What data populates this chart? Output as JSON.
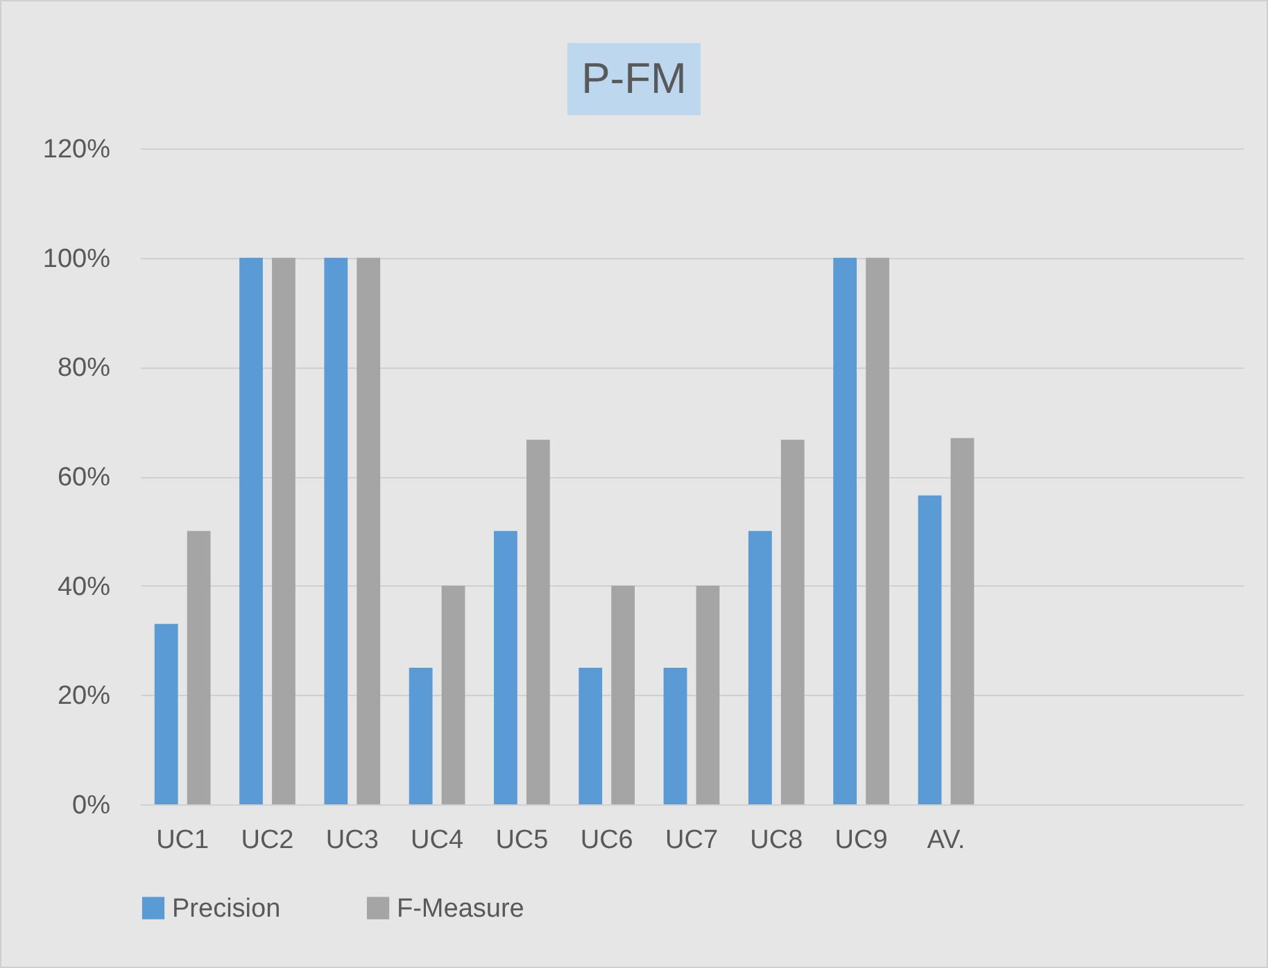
{
  "chart_data": {
    "type": "bar",
    "title": "P-FM",
    "categories": [
      "UC1",
      "UC2",
      "UC3",
      "UC4",
      "UC5",
      "UC6",
      "UC7",
      "UC8",
      "UC9",
      "AV.",
      null,
      null,
      null
    ],
    "series": [
      {
        "name": "Precision",
        "color": "#5b9bd5",
        "values": [
          33,
          100,
          100,
          25,
          50,
          25,
          25,
          50,
          100,
          56.5,
          null,
          null,
          null
        ]
      },
      {
        "name": "F-Measure",
        "color": "#a5a5a5",
        "values": [
          50,
          100,
          100,
          40,
          66.7,
          40,
          40,
          66.7,
          100,
          67,
          null,
          null,
          null
        ]
      }
    ],
    "ylim": [
      0,
      120
    ],
    "yticks": [
      {
        "value": 0,
        "label": "0%"
      },
      {
        "value": 20,
        "label": "20%"
      },
      {
        "value": 40,
        "label": "40%"
      },
      {
        "value": 60,
        "label": "60%"
      },
      {
        "value": 80,
        "label": "80%"
      },
      {
        "value": 100,
        "label": "100%"
      },
      {
        "value": 120,
        "label": "120%"
      }
    ],
    "grid": "y",
    "legend": "bottom"
  }
}
